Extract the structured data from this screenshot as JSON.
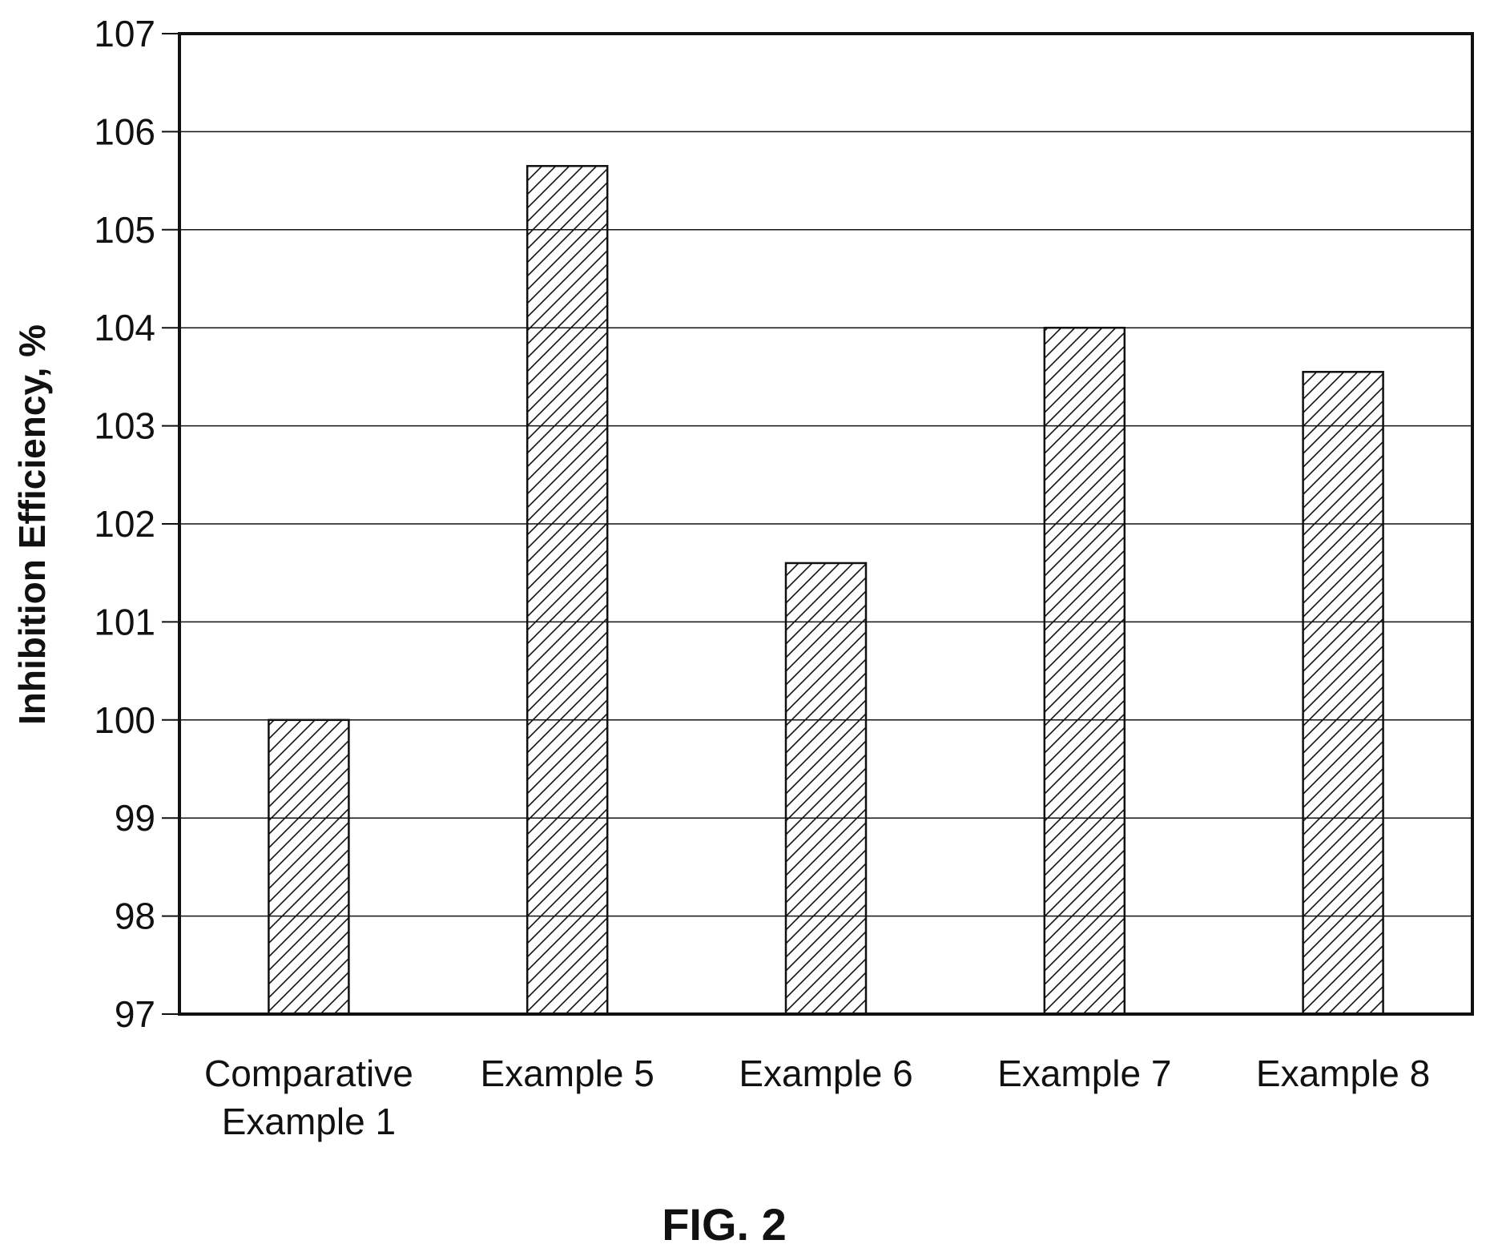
{
  "chart_data": {
    "type": "bar",
    "categories": [
      [
        "Comparative",
        "Example 1"
      ],
      [
        "Example 5"
      ],
      [
        "Example 6"
      ],
      [
        "Example 7"
      ],
      [
        "Example 8"
      ]
    ],
    "values": [
      100.0,
      105.65,
      101.6,
      104.0,
      103.55
    ],
    "ylabel": "Inhibition Efficiency, %",
    "xlabel": "",
    "ylim": [
      97,
      107
    ],
    "yticks": [
      97,
      98,
      99,
      100,
      101,
      102,
      103,
      104,
      105,
      106,
      107
    ],
    "grid": true,
    "bar_fill": "diagonal-hatch",
    "colors": {
      "bar_edge": "#111111",
      "hatch": "#111111",
      "grid": "#111111",
      "axis": "#111111"
    }
  },
  "caption": "FIG. 2"
}
